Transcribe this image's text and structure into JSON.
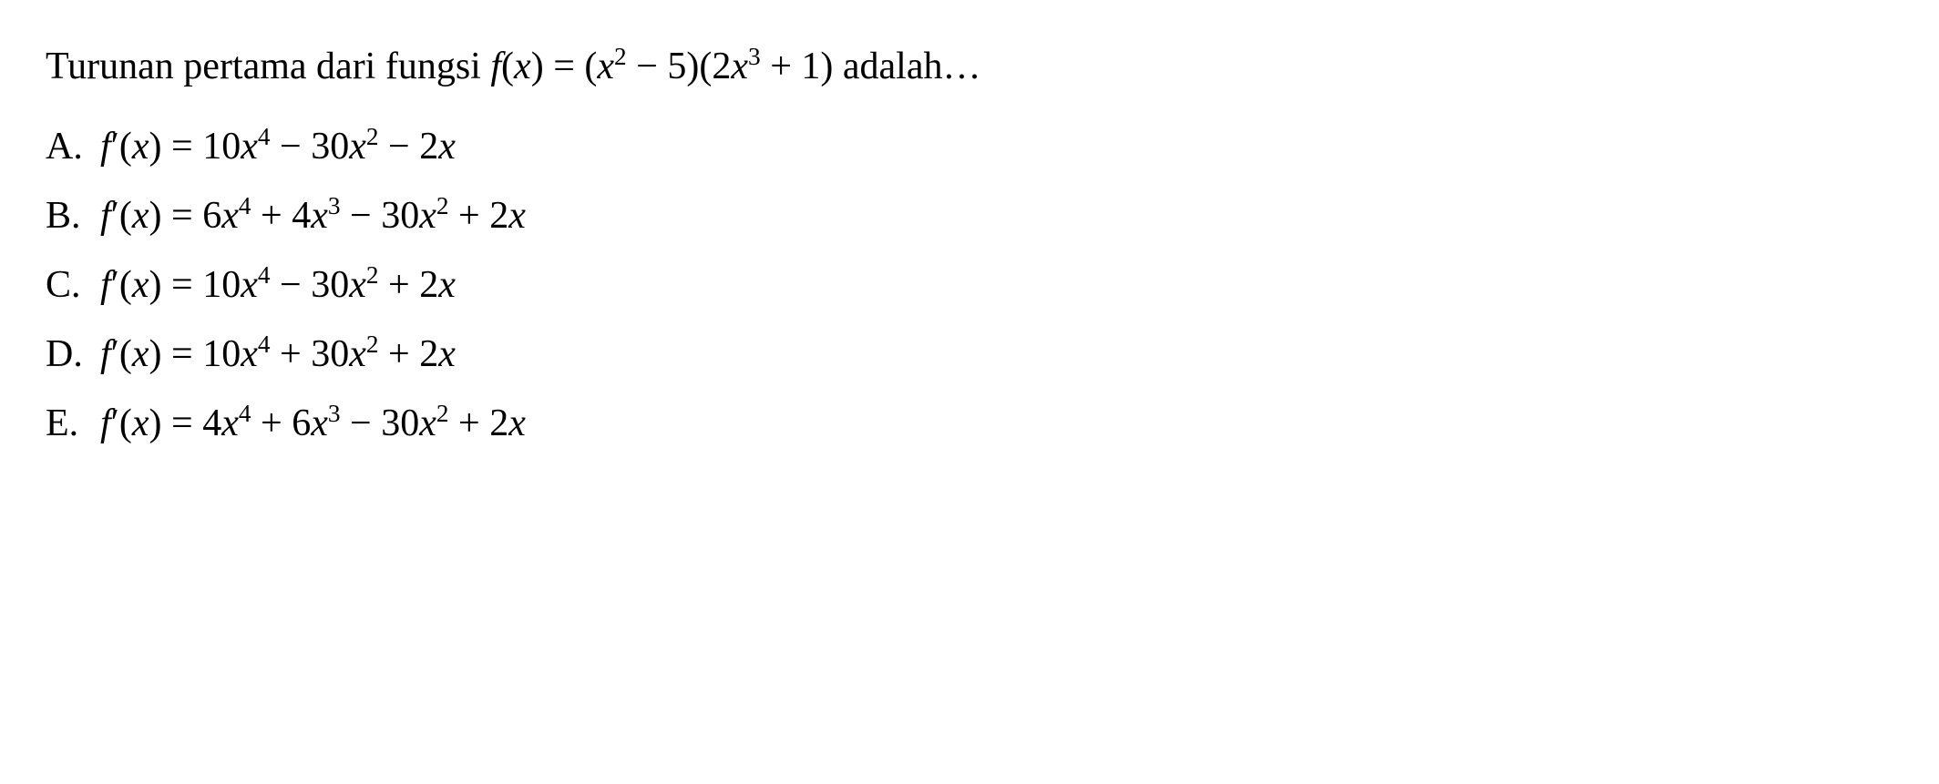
{
  "question": {
    "prefix": "Turunan pertama dari fungsi ",
    "func_name": "f",
    "func_arg": "x",
    "eq": " = ",
    "lparen": "(",
    "rparen": ")",
    "t1_var": "x",
    "t1_exp": "2",
    "t1_op": " − 5",
    "t2_coef": "2",
    "t2_var": "x",
    "t2_exp": "3",
    "t2_op": " + 1",
    "suffix": " adalah…"
  },
  "options": [
    {
      "label": "A.",
      "lhs_f": "f",
      "lhs_prime": "′",
      "lhs_arg": "x",
      "eq": " = ",
      "terms": [
        {
          "coef": "10",
          "var": "x",
          "exp": "4",
          "before": ""
        },
        {
          "coef": "30",
          "var": "x",
          "exp": "2",
          "before": " − "
        },
        {
          "coef": "2",
          "var": "x",
          "exp": "",
          "before": " − "
        }
      ]
    },
    {
      "label": "B.",
      "lhs_f": "f",
      "lhs_prime": "′",
      "lhs_arg": "x",
      "eq": " = ",
      "terms": [
        {
          "coef": "6",
          "var": "x",
          "exp": "4",
          "before": ""
        },
        {
          "coef": "4",
          "var": "x",
          "exp": "3",
          "before": " + "
        },
        {
          "coef": "30",
          "var": "x",
          "exp": "2",
          "before": " − "
        },
        {
          "coef": "2",
          "var": "x",
          "exp": "",
          "before": " + "
        }
      ]
    },
    {
      "label": "C.",
      "lhs_f": "f",
      "lhs_prime": "′",
      "lhs_arg": "x",
      "eq": " = ",
      "terms": [
        {
          "coef": "10",
          "var": "x",
          "exp": "4",
          "before": ""
        },
        {
          "coef": "30",
          "var": "x",
          "exp": "2",
          "before": " − "
        },
        {
          "coef": "2",
          "var": "x",
          "exp": "",
          "before": " + "
        }
      ]
    },
    {
      "label": "D.",
      "lhs_f": "f",
      "lhs_prime": "′",
      "lhs_arg": "x",
      "eq": " = ",
      "terms": [
        {
          "coef": "10",
          "var": "x",
          "exp": "4",
          "before": ""
        },
        {
          "coef": "30",
          "var": "x",
          "exp": "2",
          "before": " + "
        },
        {
          "coef": "2",
          "var": "x",
          "exp": "",
          "before": " + "
        }
      ]
    },
    {
      "label": "E.",
      "lhs_f": "f",
      "lhs_prime": "′",
      "lhs_arg": "x",
      "eq": " = ",
      "terms": [
        {
          "coef": "4",
          "var": "x",
          "exp": "4",
          "before": ""
        },
        {
          "coef": "6",
          "var": "x",
          "exp": "3",
          "before": " + "
        },
        {
          "coef": "30",
          "var": "x",
          "exp": "2",
          "before": " − "
        },
        {
          "coef": "2",
          "var": "x",
          "exp": "",
          "before": " + "
        }
      ]
    }
  ],
  "styling": {
    "background_color": "#ffffff",
    "text_color": "#000000",
    "font_family": "Times New Roman",
    "font_size_pt": 32,
    "line_spacing": 1.6
  }
}
